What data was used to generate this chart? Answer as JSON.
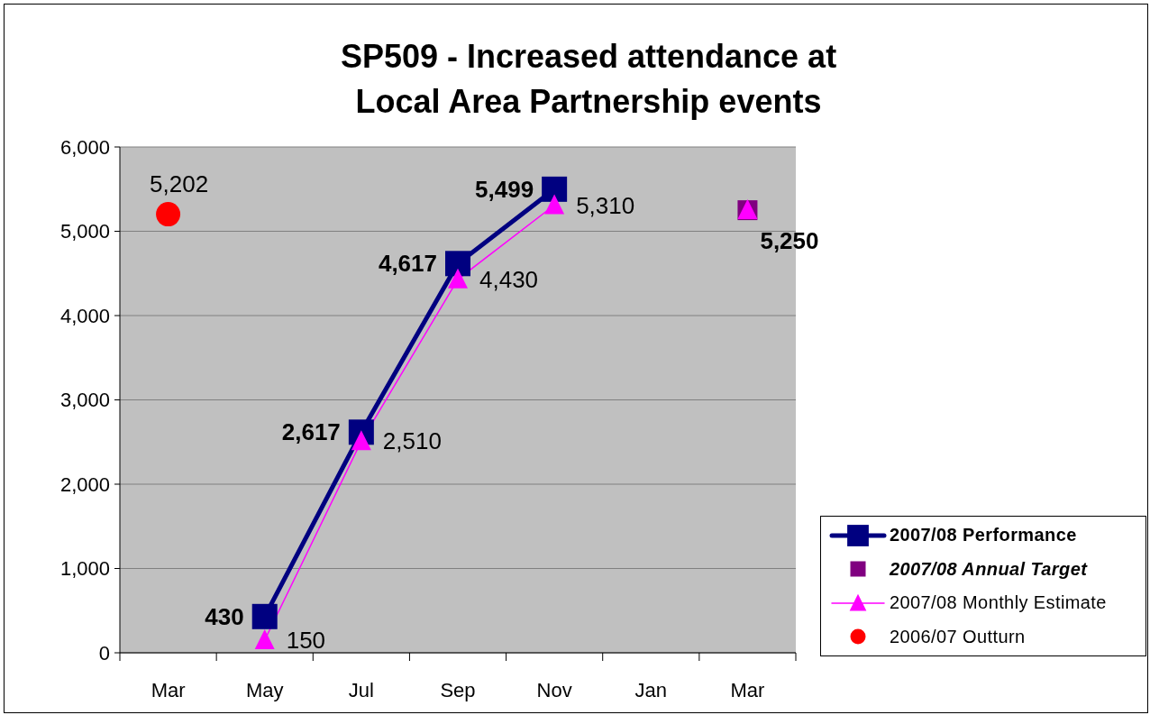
{
  "chart_data": {
    "type": "line",
    "title": "SP509 - Increased attendance at Local Area Partnership events",
    "categories": [
      "Mar",
      "May",
      "Jul",
      "Sep",
      "Nov",
      "Jan",
      "Mar"
    ],
    "ylim": [
      0,
      6000
    ],
    "yticks": [
      0,
      {
        "value": 1000,
        "label": "1,000"
      },
      {
        "value": 2000,
        "label": "2,000"
      },
      {
        "value": 3000,
        "label": "3,000"
      },
      {
        "value": 4000,
        "label": "4,000"
      },
      {
        "value": 5000,
        "label": "5,000"
      },
      {
        "value": 6000,
        "label": "6,000"
      }
    ],
    "grid": "y",
    "legend": "bottom right",
    "series": [
      {
        "name": "2007/08 Performance",
        "color": "#000080",
        "marker": "square",
        "values": [
          null,
          430,
          2617,
          4617,
          5499,
          null,
          null
        ],
        "value_labels": [
          null,
          "430",
          "2,617",
          "4,617",
          "5,499",
          null,
          null
        ]
      },
      {
        "name": "2007/08 Annual Target",
        "type": "scatter",
        "color": "#800080",
        "marker": "square",
        "values": [
          null,
          null,
          null,
          null,
          null,
          null,
          5250
        ],
        "value_labels": [
          null,
          null,
          null,
          null,
          null,
          null,
          "5,250"
        ]
      },
      {
        "name": "2007/08 Monthly Estimate",
        "color": "#ff00ff",
        "marker": "triangle",
        "values": [
          null,
          150,
          2510,
          4430,
          5310,
          null,
          5250
        ],
        "value_labels": [
          null,
          "150",
          "2,510",
          "4,430",
          "5,310",
          null,
          null
        ]
      },
      {
        "name": "2006/07 Outturn",
        "type": "scatter",
        "color": "#ff0000",
        "marker": "circle",
        "values": [
          5202,
          null,
          null,
          null,
          null,
          null,
          null
        ],
        "value_labels": [
          "5,202",
          null,
          null,
          null,
          null,
          null,
          null
        ]
      }
    ]
  }
}
